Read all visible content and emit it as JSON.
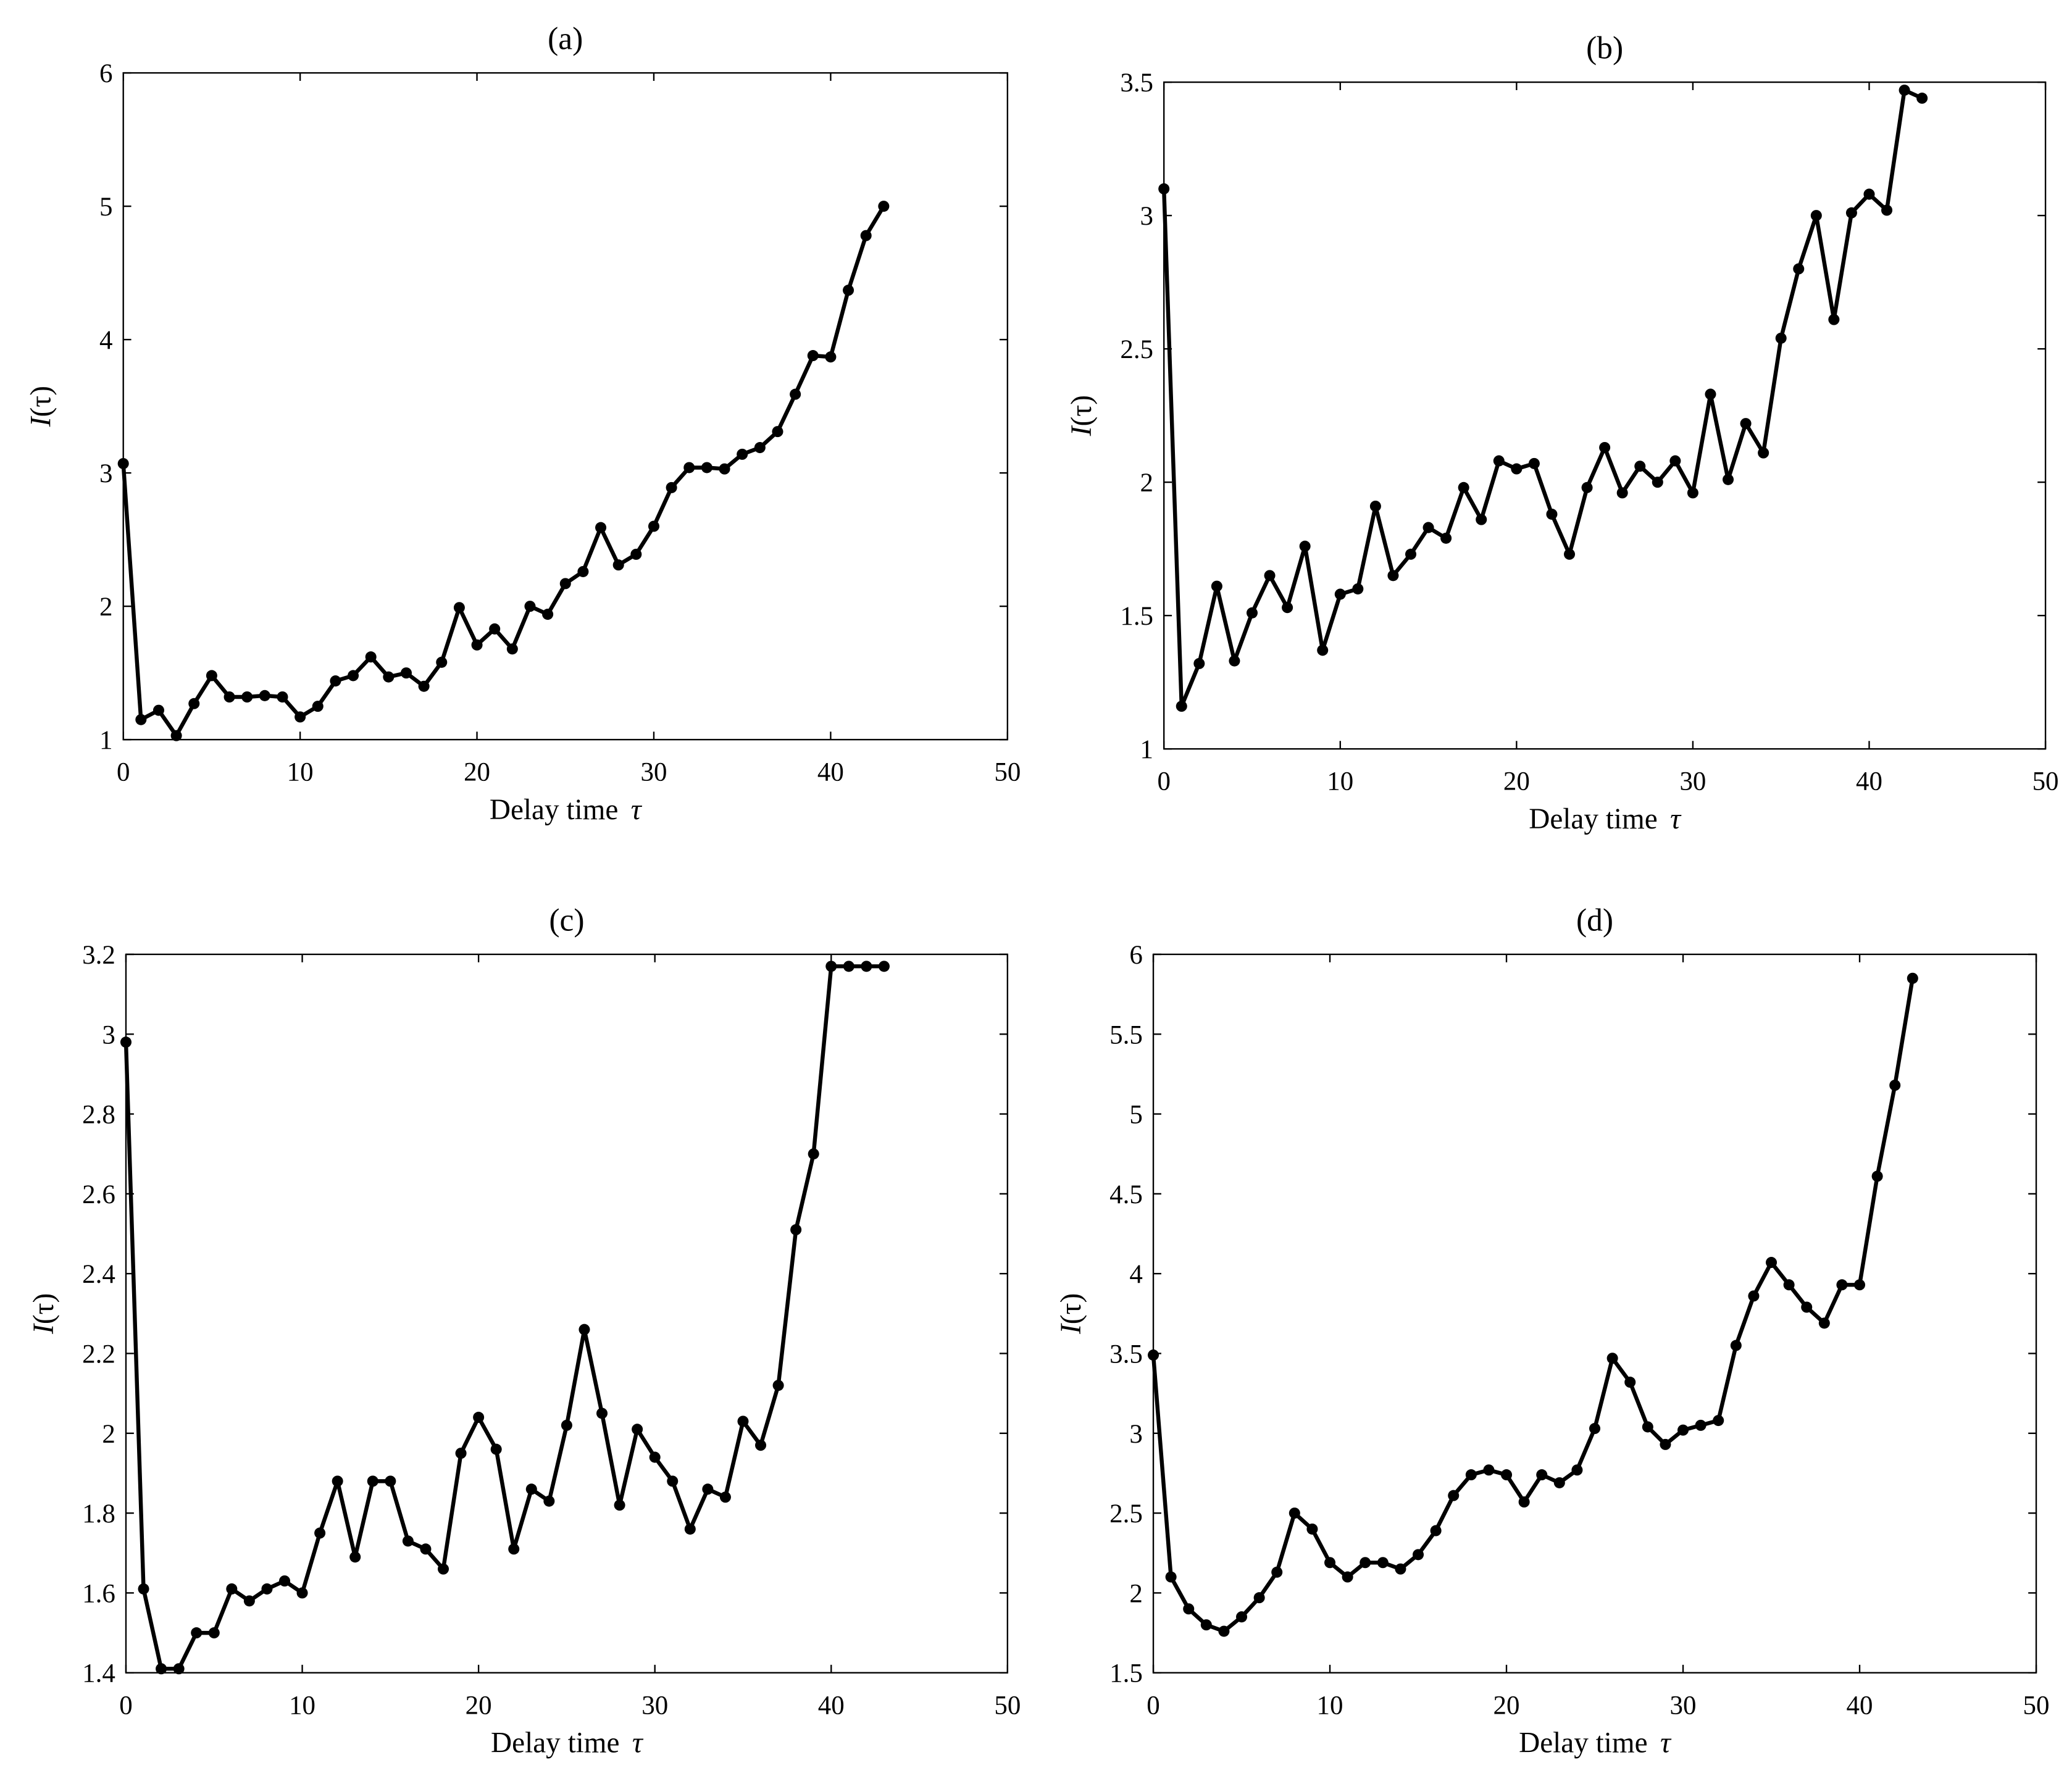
{
  "figure": {
    "xlabel": "Delay time",
    "xlabel_symbol": "τ",
    "ylabel_main": "I",
    "ylabel_paren": "(τ)"
  },
  "chart_data": [
    {
      "type": "line",
      "title": "(a)",
      "xlabel": "Delay time τ",
      "ylabel": "I(τ)",
      "xlim": [
        0,
        50
      ],
      "ylim": [
        1,
        6
      ],
      "xticks": [
        0,
        10,
        20,
        30,
        40,
        50
      ],
      "yticks": [
        1,
        2,
        3,
        4,
        5,
        6
      ],
      "ytick_labels": [
        "1",
        "2",
        "3",
        "4",
        "5",
        "6"
      ],
      "grid": false,
      "x": [
        0,
        1,
        2,
        3,
        4,
        5,
        6,
        7,
        8,
        9,
        10,
        11,
        12,
        13,
        14,
        15,
        16,
        17,
        18,
        19,
        20,
        21,
        22,
        23,
        24,
        25,
        26,
        27,
        28,
        29,
        30,
        31,
        32,
        33,
        34,
        35,
        36,
        37,
        38,
        39,
        40,
        41,
        42,
        43
      ],
      "y": [
        3.07,
        1.15,
        1.22,
        1.03,
        1.27,
        1.48,
        1.32,
        1.32,
        1.33,
        1.32,
        1.17,
        1.25,
        1.44,
        1.48,
        1.62,
        1.47,
        1.5,
        1.4,
        1.58,
        1.99,
        1.71,
        1.83,
        1.68,
        2.0,
        1.94,
        2.17,
        2.26,
        2.59,
        2.31,
        2.39,
        2.6,
        2.89,
        3.04,
        3.04,
        3.03,
        3.14,
        3.19,
        3.31,
        3.59,
        3.88,
        3.87,
        4.37,
        4.78,
        5.0
      ]
    },
    {
      "type": "line",
      "title": "(b)",
      "xlabel": "Delay time τ",
      "ylabel": "I(τ)",
      "xlim": [
        0,
        50
      ],
      "ylim": [
        1,
        3.5
      ],
      "xticks": [
        0,
        10,
        20,
        30,
        40,
        50
      ],
      "yticks": [
        1,
        1.5,
        2,
        2.5,
        3,
        3.5
      ],
      "ytick_labels": [
        "1",
        "1.5",
        "2",
        "2.5",
        "3",
        "3.5"
      ],
      "grid": false,
      "x": [
        0,
        1,
        2,
        3,
        4,
        5,
        6,
        7,
        8,
        9,
        10,
        11,
        12,
        13,
        14,
        15,
        16,
        17,
        18,
        19,
        20,
        21,
        22,
        23,
        24,
        25,
        26,
        27,
        28,
        29,
        30,
        31,
        32,
        33,
        34,
        35,
        36,
        37,
        38,
        39,
        40,
        41,
        42,
        43
      ],
      "y": [
        3.1,
        1.16,
        1.32,
        1.61,
        1.33,
        1.51,
        1.65,
        1.53,
        1.76,
        1.37,
        1.58,
        1.6,
        1.91,
        1.65,
        1.73,
        1.83,
        1.79,
        1.98,
        1.86,
        2.08,
        2.05,
        2.07,
        1.88,
        1.73,
        1.98,
        2.13,
        1.96,
        2.06,
        2.0,
        2.08,
        1.96,
        2.33,
        2.01,
        2.22,
        2.11,
        2.54,
        2.8,
        3.0,
        2.61,
        3.01,
        3.08,
        3.02,
        3.47,
        3.44
      ]
    },
    {
      "type": "line",
      "title": "(c)",
      "xlabel": "Delay time τ",
      "ylabel": "I(τ)",
      "xlim": [
        0,
        50
      ],
      "ylim": [
        1.4,
        3.2
      ],
      "xticks": [
        0,
        10,
        20,
        30,
        40,
        50
      ],
      "yticks": [
        1.4,
        1.6,
        1.8,
        2.0,
        2.2,
        2.4,
        2.6,
        2.8,
        3.0,
        3.2
      ],
      "ytick_labels": [
        "1.4",
        "1.6",
        "1.8",
        "2",
        "2.2",
        "2.4",
        "2.6",
        "2.8",
        "3",
        "3.2"
      ],
      "grid": false,
      "x": [
        0,
        1,
        2,
        3,
        4,
        5,
        6,
        7,
        8,
        9,
        10,
        11,
        12,
        13,
        14,
        15,
        16,
        17,
        18,
        19,
        20,
        21,
        22,
        23,
        24,
        25,
        26,
        27,
        28,
        29,
        30,
        31,
        32,
        33,
        34,
        35,
        36,
        37,
        38,
        39,
        40,
        41,
        42,
        43
      ],
      "y": [
        2.98,
        1.61,
        1.41,
        1.41,
        1.5,
        1.5,
        1.61,
        1.58,
        1.61,
        1.63,
        1.6,
        1.75,
        1.88,
        1.69,
        1.88,
        1.88,
        1.73,
        1.71,
        1.66,
        1.95,
        2.04,
        1.96,
        1.71,
        1.86,
        1.83,
        2.02,
        2.26,
        2.05,
        1.82,
        2.01,
        1.94,
        1.88,
        1.76,
        1.86,
        1.84,
        2.03,
        1.97,
        2.12,
        2.51,
        2.7,
        3.17,
        3.17,
        3.17,
        3.17
      ]
    },
    {
      "type": "line",
      "title": "(d)",
      "xlabel": "Delay time τ",
      "ylabel": "I(τ)",
      "xlim": [
        0,
        50
      ],
      "ylim": [
        1.5,
        6
      ],
      "xticks": [
        0,
        10,
        20,
        30,
        40,
        50
      ],
      "yticks": [
        1.5,
        2,
        2.5,
        3,
        3.5,
        4,
        4.5,
        5,
        5.5,
        6
      ],
      "ytick_labels": [
        "1.5",
        "2",
        "2.5",
        "3",
        "3.5",
        "4",
        "4.5",
        "5",
        "5.5",
        "6"
      ],
      "grid": false,
      "x": [
        0,
        1,
        2,
        3,
        4,
        5,
        6,
        7,
        8,
        9,
        10,
        11,
        12,
        13,
        14,
        15,
        16,
        17,
        18,
        19,
        20,
        21,
        22,
        23,
        24,
        25,
        26,
        27,
        28,
        29,
        30,
        31,
        32,
        33,
        34,
        35,
        36,
        37,
        38,
        39,
        40,
        41,
        42,
        43
      ],
      "y": [
        3.49,
        2.1,
        1.9,
        1.8,
        1.76,
        1.85,
        1.97,
        2.13,
        2.5,
        2.4,
        2.19,
        2.1,
        2.19,
        2.19,
        2.15,
        2.24,
        2.39,
        2.61,
        2.74,
        2.77,
        2.74,
        2.57,
        2.74,
        2.69,
        2.77,
        3.03,
        3.47,
        3.32,
        3.04,
        2.93,
        3.02,
        3.05,
        3.08,
        3.55,
        3.86,
        4.07,
        3.93,
        3.79,
        3.69,
        3.93,
        3.93,
        4.61,
        5.18,
        5.85
      ]
    }
  ]
}
